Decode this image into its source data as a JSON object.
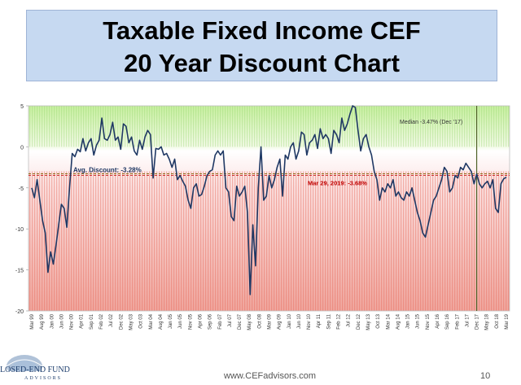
{
  "header": {
    "title_line1": "Taxable Fixed Income CEF",
    "title_line2": "20 Year Discount Chart"
  },
  "footer": {
    "url": "www.CEFadvisors.com",
    "page_number": "10",
    "logo_text": "LOSED-END FUND",
    "logo_sub": "ADVISORS"
  },
  "colors": {
    "line": "#1f3864",
    "avg_line": "#7f6000",
    "median_line": "#4f6228",
    "positive_zone": "#92d050",
    "negative_zone": "#ff3030",
    "title_bg": "#c6d9f1"
  },
  "chart_data": {
    "type": "line",
    "ylim": [
      -20,
      5
    ],
    "y_ticks": [
      "5",
      "0",
      "-5",
      "-10",
      "-15",
      "-20"
    ],
    "x_labels": [
      "Mar 99",
      "Aug 99",
      "Jan 00",
      "Jun 00",
      "Nov 00",
      "Apr 01",
      "Sep 01",
      "Feb 02",
      "Jul 02",
      "Dec 02",
      "May 03",
      "Oct 03",
      "Mar 04",
      "Aug 04",
      "Jan 05",
      "Jun 05",
      "Nov 05",
      "Apr 06",
      "Sep 06",
      "Feb 07",
      "Jul 07",
      "Dec 07",
      "May 08",
      "Oct 08",
      "Mar 09",
      "Aug 09",
      "Jan 10",
      "Jun 10",
      "Nov 10",
      "Apr 11",
      "Sep 11",
      "Feb 12",
      "Jul 12",
      "Dec 12",
      "May 13",
      "Oct 13",
      "Mar 14",
      "Aug 14",
      "Jan 15",
      "Jun 15",
      "Nov 15",
      "Apr 16",
      "Sep 16",
      "Feb 17",
      "Jul 17",
      "Dec 17",
      "May 18",
      "Oct 18",
      "Mar 19"
    ],
    "series": [
      {
        "values": [
          -5.0,
          -6.2,
          -4.0,
          -6.5,
          -9.0,
          -10.5,
          -15.3,
          -12.8,
          -14.3,
          -12.0,
          -9.5,
          -7.0,
          -7.5,
          -9.8,
          -5.0,
          -0.8,
          -1.2,
          -0.3,
          -0.6,
          1.0,
          -0.5,
          0.5,
          1.0,
          -1.0,
          0.2,
          0.8,
          3.5,
          1.0,
          0.8,
          1.5,
          3.0,
          0.8,
          1.2,
          -0.3,
          2.8,
          2.5,
          0.5,
          1.2,
          -0.5,
          -1.0,
          0.8,
          -0.3,
          1.2,
          2.0,
          1.5,
          -3.8,
          -0.2,
          -0.3,
          0.0,
          -1.0,
          -0.8,
          -1.5,
          -2.5,
          -1.5,
          -4.0,
          -3.5,
          -4.2,
          -4.8,
          -6.5,
          -7.5,
          -5.0,
          -4.5,
          -6.0,
          -5.8,
          -4.8,
          -3.5,
          -3.0,
          -2.8,
          -1.0,
          -0.5,
          -1.0,
          -0.5,
          -5.0,
          -5.5,
          -8.5,
          -9.0,
          -4.8,
          -6.0,
          -5.5,
          -4.8,
          -8.0,
          -18.0,
          -9.5,
          -14.5,
          -5.0,
          0.0,
          -6.5,
          -6.0,
          -3.5,
          -5.0,
          -4.0,
          -2.5,
          -1.5,
          -6.0,
          -1.0,
          -1.5,
          0.0,
          0.5,
          -1.5,
          -0.5,
          1.8,
          1.5,
          -1.0,
          0.5,
          0.8,
          1.5,
          -0.2,
          2.2,
          1.0,
          1.5,
          1.0,
          -0.8,
          2.0,
          1.5,
          0.5,
          3.5,
          2.0,
          2.8,
          4.0,
          5.0,
          4.8,
          2.0,
          -0.5,
          1.0,
          1.5,
          0.0,
          -1.0,
          -3.0,
          -4.0,
          -6.5,
          -5.0,
          -5.5,
          -4.5,
          -5.0,
          -4.0,
          -6.0,
          -5.5,
          -6.2,
          -6.5,
          -5.5,
          -6.0,
          -5.0,
          -6.5,
          -8.0,
          -9.0,
          -10.5,
          -11.0,
          -9.5,
          -8.0,
          -6.5,
          -6.0,
          -5.0,
          -4.0,
          -2.5,
          -3.0,
          -5.5,
          -5.0,
          -3.5,
          -3.8,
          -2.5,
          -2.8,
          -2.0,
          -2.5,
          -3.0,
          -4.5,
          -3.3,
          -4.5,
          -5.0,
          -4.5,
          -4.2,
          -5.0,
          -4.0,
          -7.5,
          -8.0,
          -4.5,
          -3.9,
          -3.7
        ]
      }
    ],
    "annotations": {
      "avg_label": "Avg. Discount: -3.28%",
      "avg_value": -3.28,
      "median_label": "Median -3.47% (Dec '17)",
      "median_value": -3.47,
      "median_x_label": "Dec 17",
      "current_label": "Mar 29, 2019: -3.68%",
      "current_value": -3.68
    },
    "grid": false,
    "legend": "none"
  }
}
